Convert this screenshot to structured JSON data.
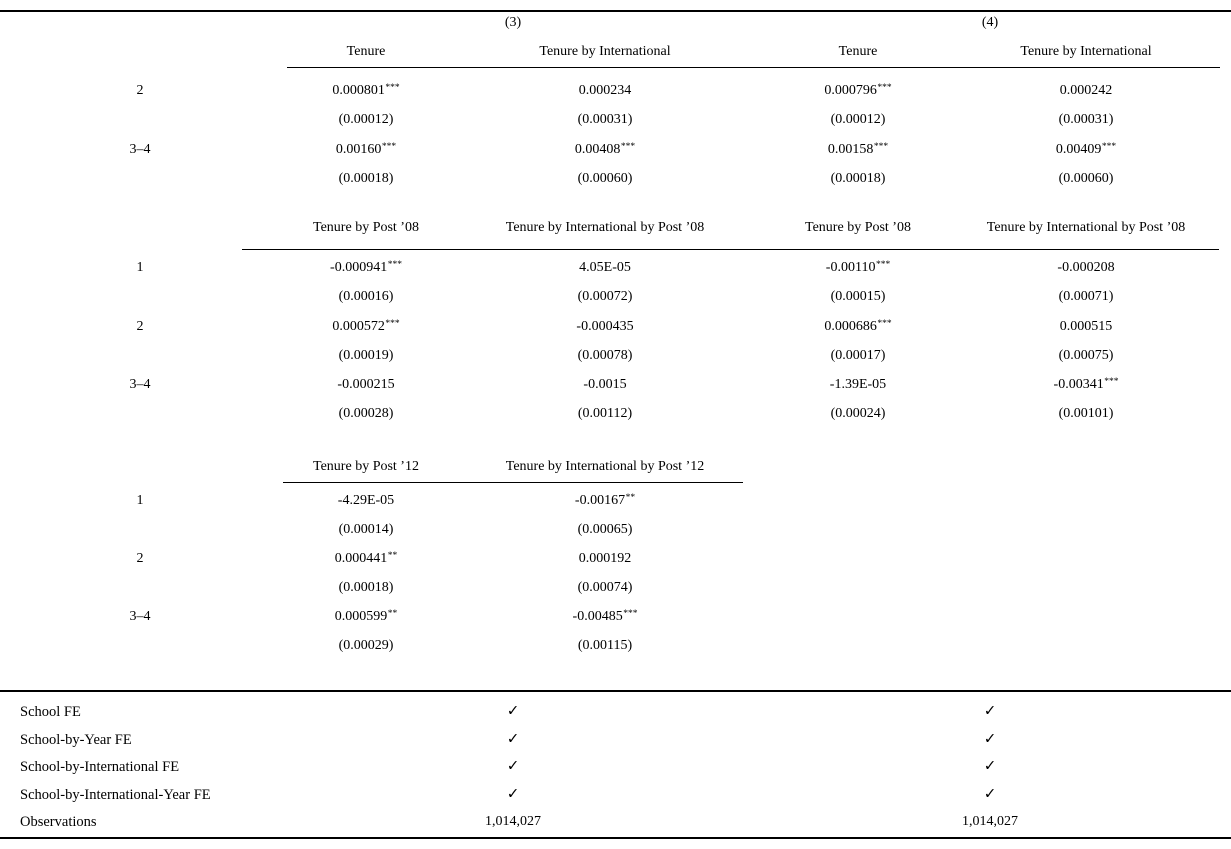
{
  "table": {
    "groups": [
      "(3)",
      "(4)"
    ],
    "blocks": [
      {
        "headers": [
          "Tenure",
          "Tenure by International",
          "Tenure",
          "Tenure by International"
        ],
        "rows": [
          {
            "label": "2",
            "coefs": [
              {
                "v": "0.000801",
                "s": "***"
              },
              {
                "v": "0.000234",
                "s": ""
              },
              {
                "v": "0.000796",
                "s": "***"
              },
              {
                "v": "0.000242",
                "s": ""
              }
            ],
            "ses": [
              "(0.00012)",
              "(0.00031)",
              "(0.00012)",
              "(0.00031)"
            ]
          },
          {
            "label": "3–4",
            "coefs": [
              {
                "v": "0.00160",
                "s": "***"
              },
              {
                "v": "0.00408",
                "s": "***"
              },
              {
                "v": "0.00158",
                "s": "***"
              },
              {
                "v": "0.00409",
                "s": "***"
              }
            ],
            "ses": [
              "(0.00018)",
              "(0.00060)",
              "(0.00018)",
              "(0.00060)"
            ]
          }
        ]
      },
      {
        "headers": [
          "Tenure by Post ’08",
          "Tenure by International by Post ’08",
          "Tenure by Post ’08",
          "Tenure by International by Post ’08"
        ],
        "rows": [
          {
            "label": "1",
            "coefs": [
              {
                "v": "-0.000941",
                "s": "***"
              },
              {
                "v": "4.05E-05",
                "s": ""
              },
              {
                "v": "-0.00110",
                "s": "***"
              },
              {
                "v": "-0.000208",
                "s": ""
              }
            ],
            "ses": [
              "(0.00016)",
              "(0.00072)",
              "(0.00015)",
              "(0.00071)"
            ]
          },
          {
            "label": "2",
            "coefs": [
              {
                "v": "0.000572",
                "s": "***"
              },
              {
                "v": "-0.000435",
                "s": ""
              },
              {
                "v": "0.000686",
                "s": "***"
              },
              {
                "v": "0.000515",
                "s": ""
              }
            ],
            "ses": [
              "(0.00019)",
              "(0.00078)",
              "(0.00017)",
              "(0.00075)"
            ]
          },
          {
            "label": "3–4",
            "coefs": [
              {
                "v": "-0.000215",
                "s": ""
              },
              {
                "v": "-0.0015",
                "s": ""
              },
              {
                "v": "-1.39E-05",
                "s": ""
              },
              {
                "v": "-0.00341",
                "s": "***"
              }
            ],
            "ses": [
              "(0.00028)",
              "(0.00112)",
              "(0.00024)",
              "(0.00101)"
            ]
          }
        ]
      },
      {
        "headers": [
          "Tenure by Post ’12",
          "Tenure by International by Post ’12",
          null,
          null
        ],
        "rows": [
          {
            "label": "1",
            "coefs": [
              {
                "v": "-4.29E-05",
                "s": ""
              },
              {
                "v": "-0.00167",
                "s": "**"
              },
              null,
              null
            ],
            "ses": [
              "(0.00014)",
              "(0.00065)",
              null,
              null
            ]
          },
          {
            "label": "2",
            "coefs": [
              {
                "v": "0.000441",
                "s": "**"
              },
              {
                "v": "0.000192",
                "s": ""
              },
              null,
              null
            ],
            "ses": [
              "(0.00018)",
              "(0.00074)",
              null,
              null
            ]
          },
          {
            "label": "3–4",
            "coefs": [
              {
                "v": "0.000599",
                "s": "**"
              },
              {
                "v": "-0.00485",
                "s": "***"
              },
              null,
              null
            ],
            "ses": [
              "(0.00029)",
              "(0.00115)",
              null,
              null
            ]
          }
        ]
      }
    ],
    "footer": {
      "checkmark_icon": "✓",
      "rows": [
        {
          "label": "School FE",
          "values": [
            "✓",
            "✓"
          ]
        },
        {
          "label": "School-by-Year FE",
          "values": [
            "✓",
            "✓"
          ]
        },
        {
          "label": "School-by-International FE",
          "values": [
            "✓",
            "✓"
          ]
        },
        {
          "label": "School-by-International-Year FE",
          "values": [
            "✓",
            "✓"
          ]
        },
        {
          "label": "Observations",
          "values": [
            "1,014,027",
            "1,014,027"
          ]
        }
      ]
    }
  }
}
